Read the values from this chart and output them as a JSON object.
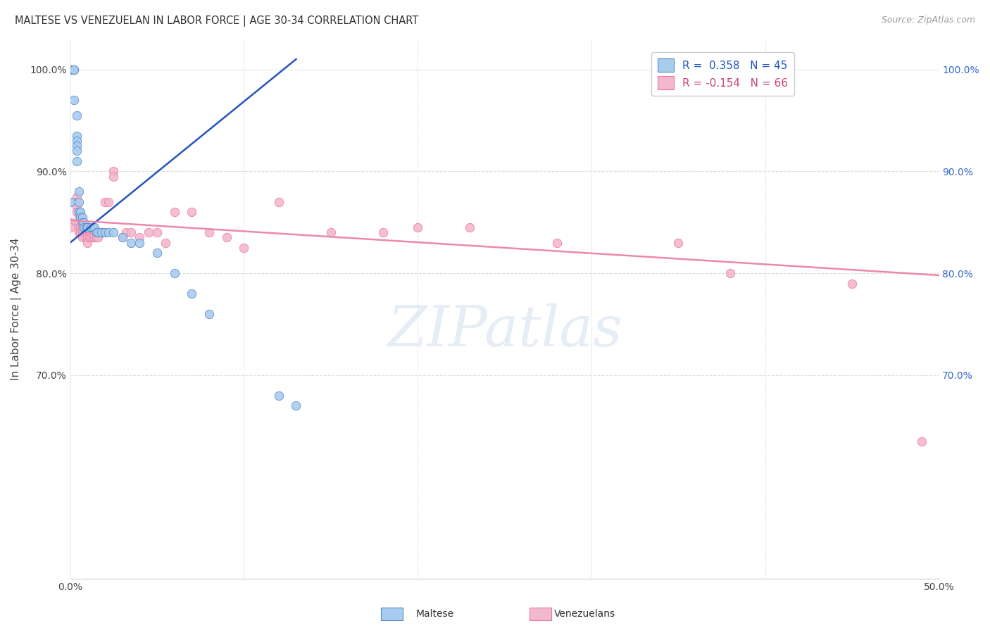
{
  "title": "MALTESE VS VENEZUELAN IN LABOR FORCE | AGE 30-34 CORRELATION CHART",
  "source": "Source: ZipAtlas.com",
  "xlabel": "",
  "ylabel": "In Labor Force | Age 30-34",
  "xlim": [
    0.0,
    0.5
  ],
  "ylim": [
    0.5,
    1.03
  ],
  "xticks": [
    0.0,
    0.1,
    0.2,
    0.3,
    0.4,
    0.5
  ],
  "xtick_labels": [
    "0.0%",
    "",
    "",
    "",
    "",
    "50.0%"
  ],
  "ytick_pos": [
    0.7,
    0.8,
    0.9,
    1.0
  ],
  "ytick_labels": [
    "70.0%",
    "80.0%",
    "90.0%",
    "100.0%"
  ],
  "maltese_color": "#A8CCEE",
  "venezuelan_color": "#F4B8CC",
  "maltese_edge_color": "#5588CC",
  "venezuelan_edge_color": "#E87AA0",
  "maltese_line_color": "#2255BB",
  "venezuelan_line_color": "#EE88AA",
  "legend_label1": "R =  0.358   N = 45",
  "legend_label2": "R = -0.154   N = 66",
  "legend_color1": "#2255BB",
  "legend_color2": "#CC4477",
  "watermark": "ZIPatlas",
  "bg_color": "#FFFFFF",
  "grid_color": "#DDDDDD",
  "right_tick_color": "#3366CC",
  "maltese_x": [
    0.0,
    0.0,
    0.0,
    0.0,
    0.0,
    0.002,
    0.002,
    0.002,
    0.004,
    0.004,
    0.004,
    0.004,
    0.004,
    0.004,
    0.005,
    0.005,
    0.005,
    0.006,
    0.006,
    0.007,
    0.007,
    0.008,
    0.008,
    0.009,
    0.01,
    0.01,
    0.01,
    0.012,
    0.013,
    0.014,
    0.015,
    0.016,
    0.018,
    0.02,
    0.022,
    0.025,
    0.03,
    0.035,
    0.04,
    0.05,
    0.06,
    0.07,
    0.08,
    0.12,
    0.13
  ],
  "maltese_y": [
    0.87,
    1.0,
    1.0,
    1.0,
    1.0,
    1.0,
    1.0,
    0.97,
    0.955,
    0.935,
    0.93,
    0.925,
    0.92,
    0.91,
    0.88,
    0.87,
    0.86,
    0.86,
    0.855,
    0.855,
    0.85,
    0.85,
    0.845,
    0.845,
    0.845,
    0.845,
    0.845,
    0.845,
    0.845,
    0.845,
    0.84,
    0.84,
    0.84,
    0.84,
    0.84,
    0.84,
    0.835,
    0.83,
    0.83,
    0.82,
    0.8,
    0.78,
    0.76,
    0.68,
    0.67
  ],
  "venezuelan_x": [
    0.0,
    0.0,
    0.004,
    0.004,
    0.004,
    0.004,
    0.005,
    0.005,
    0.005,
    0.005,
    0.005,
    0.006,
    0.006,
    0.007,
    0.007,
    0.007,
    0.008,
    0.008,
    0.009,
    0.009,
    0.009,
    0.01,
    0.01,
    0.01,
    0.01,
    0.011,
    0.011,
    0.012,
    0.012,
    0.013,
    0.013,
    0.014,
    0.014,
    0.015,
    0.015,
    0.016,
    0.016,
    0.017,
    0.018,
    0.019,
    0.02,
    0.022,
    0.025,
    0.025,
    0.03,
    0.032,
    0.035,
    0.04,
    0.045,
    0.05,
    0.055,
    0.06,
    0.07,
    0.08,
    0.09,
    0.1,
    0.12,
    0.15,
    0.18,
    0.2,
    0.23,
    0.28,
    0.35,
    0.38,
    0.45,
    0.49
  ],
  "venezuelan_y": [
    0.85,
    0.845,
    0.875,
    0.87,
    0.865,
    0.86,
    0.86,
    0.855,
    0.85,
    0.845,
    0.84,
    0.845,
    0.84,
    0.845,
    0.84,
    0.835,
    0.845,
    0.84,
    0.845,
    0.84,
    0.835,
    0.845,
    0.84,
    0.835,
    0.83,
    0.84,
    0.835,
    0.84,
    0.835,
    0.84,
    0.835,
    0.84,
    0.835,
    0.84,
    0.835,
    0.84,
    0.835,
    0.84,
    0.84,
    0.84,
    0.87,
    0.87,
    0.9,
    0.895,
    0.835,
    0.84,
    0.84,
    0.835,
    0.84,
    0.84,
    0.83,
    0.86,
    0.86,
    0.84,
    0.835,
    0.825,
    0.87,
    0.84,
    0.84,
    0.845,
    0.845,
    0.83,
    0.83,
    0.8,
    0.79,
    0.635
  ],
  "maltese_trend_x": [
    0.0,
    0.13
  ],
  "maltese_trend_y": [
    0.83,
    1.01
  ],
  "venezuelan_trend_x": [
    0.0,
    0.5
  ],
  "venezuelan_trend_y": [
    0.852,
    0.798
  ]
}
